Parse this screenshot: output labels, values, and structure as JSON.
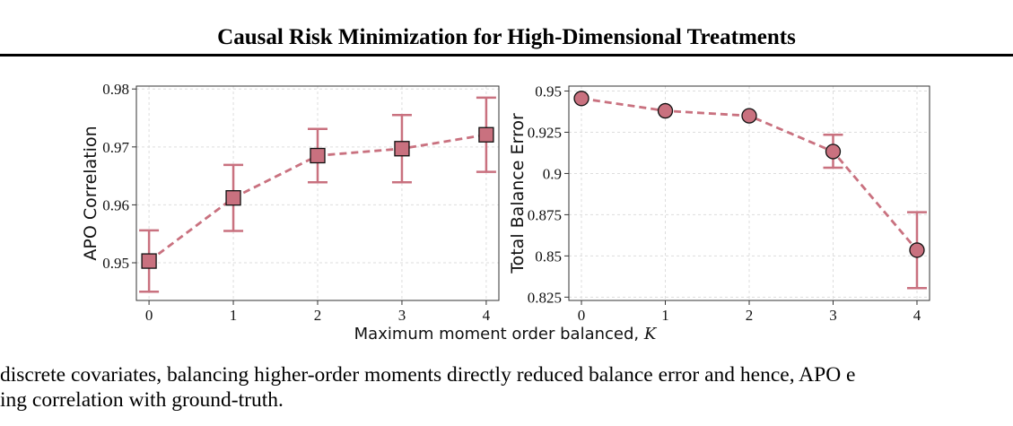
{
  "header": {
    "title": "Causal Risk Minimization for High-Dimensional Treatments"
  },
  "figure": {
    "shared_xlabel_prefix": "Maximum moment order balanced, ",
    "shared_xlabel_var": "K"
  },
  "caption": {
    "line1": "discrete covariates, balancing higher-order moments directly reduced balance error and hence, APO e",
    "line2": "ing correlation with ground-truth."
  },
  "colors": {
    "series": "#c9717f",
    "marker_edge": "#111111",
    "grid": "#dddddd"
  },
  "chart_data": [
    {
      "type": "line",
      "marker": "square",
      "ylabel": "APO Correlation",
      "x": [
        0,
        1,
        2,
        3,
        4
      ],
      "xticks": [
        "0",
        "1",
        "2",
        "3",
        "4"
      ],
      "xlim": [
        -0.15,
        4.15
      ],
      "ylim": [
        0.9435,
        0.9805
      ],
      "yticks": [
        0.95,
        0.96,
        0.97,
        0.98
      ],
      "ytick_labels": [
        "0.95",
        "0.96",
        "0.97",
        "0.98"
      ],
      "series": [
        {
          "y": [
            0.9503,
            0.9612,
            0.9685,
            0.9697,
            0.9721
          ],
          "yerr_low": [
            0.945,
            0.9555,
            0.9639,
            0.9639,
            0.9657
          ],
          "yerr_high": [
            0.9556,
            0.9669,
            0.9731,
            0.9755,
            0.9785
          ]
        }
      ],
      "grid": true
    },
    {
      "type": "line",
      "marker": "circle",
      "ylabel": "Total Balance Error",
      "x": [
        0,
        1,
        2,
        3,
        4
      ],
      "xticks": [
        "0",
        "1",
        "2",
        "3",
        "4"
      ],
      "xlim": [
        -0.15,
        4.15
      ],
      "ylim": [
        0.823,
        0.953
      ],
      "yticks": [
        0.825,
        0.85,
        0.875,
        0.9,
        0.925,
        0.95
      ],
      "ytick_labels": [
        "0.825",
        "0.85",
        "0.875",
        "0.9",
        "0.925",
        "0.95"
      ],
      "series": [
        {
          "y": [
            0.9455,
            0.938,
            0.935,
            0.9133,
            0.8535
          ],
          "yerr_low": [
            null,
            null,
            null,
            0.9035,
            0.8305
          ],
          "yerr_high": [
            null,
            null,
            null,
            0.9235,
            0.8765
          ]
        }
      ],
      "grid": true
    }
  ]
}
